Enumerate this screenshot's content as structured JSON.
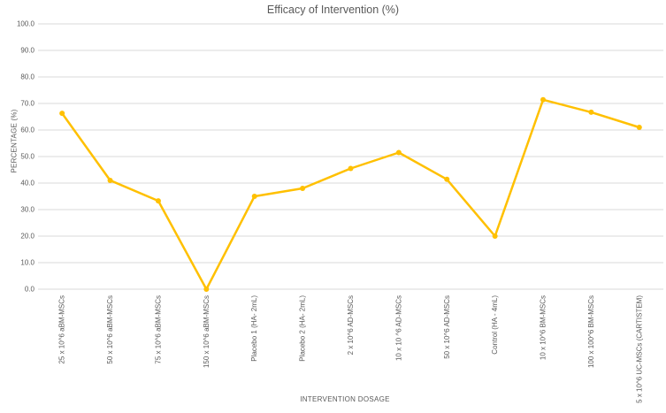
{
  "chart_data": {
    "type": "line",
    "title": "Efficacy of Intervention (%)",
    "xlabel": "INTERVENTION DOSAGE",
    "ylabel": "PERCENTAGE (%)",
    "categories": [
      "25 x 10^6 aBM-MSCs",
      "50 x 10^6 aBM-MSCs",
      "75 x 10^6 aBM-MSCs",
      "150 x 10^6 aBM-MSCs",
      "Placebo 1 (HA- 2mL)",
      "Placebo 2 (HA- 2mL)",
      "2 x 10^6 AD-MSCs",
      "10 x 10 ^6 AD-MSCs",
      "50 x 10^6 AD-MSCs",
      "Control (HA - 4mL)",
      "10 x 10^6 BM-MSCs",
      "100 x 100^6 BM-MSCs",
      "5 x 10^6 UC-MSCs (CARTISTEM)"
    ],
    "values": [
      66.3,
      41.0,
      33.3,
      0.0,
      35.0,
      38.0,
      45.5,
      51.5,
      41.4,
      20.0,
      71.4,
      66.7,
      61.0
    ],
    "ylim": [
      0,
      100
    ],
    "yticks": [
      0,
      10,
      20,
      30,
      40,
      50,
      60,
      70,
      80,
      90,
      100
    ],
    "ytick_decimals": 1,
    "grid": "horizontal",
    "legend": "none",
    "line_color": "#FFC000",
    "marker_color": "#FFC000",
    "gridline_color": "#D9D9D9",
    "text_color": "#595959"
  }
}
